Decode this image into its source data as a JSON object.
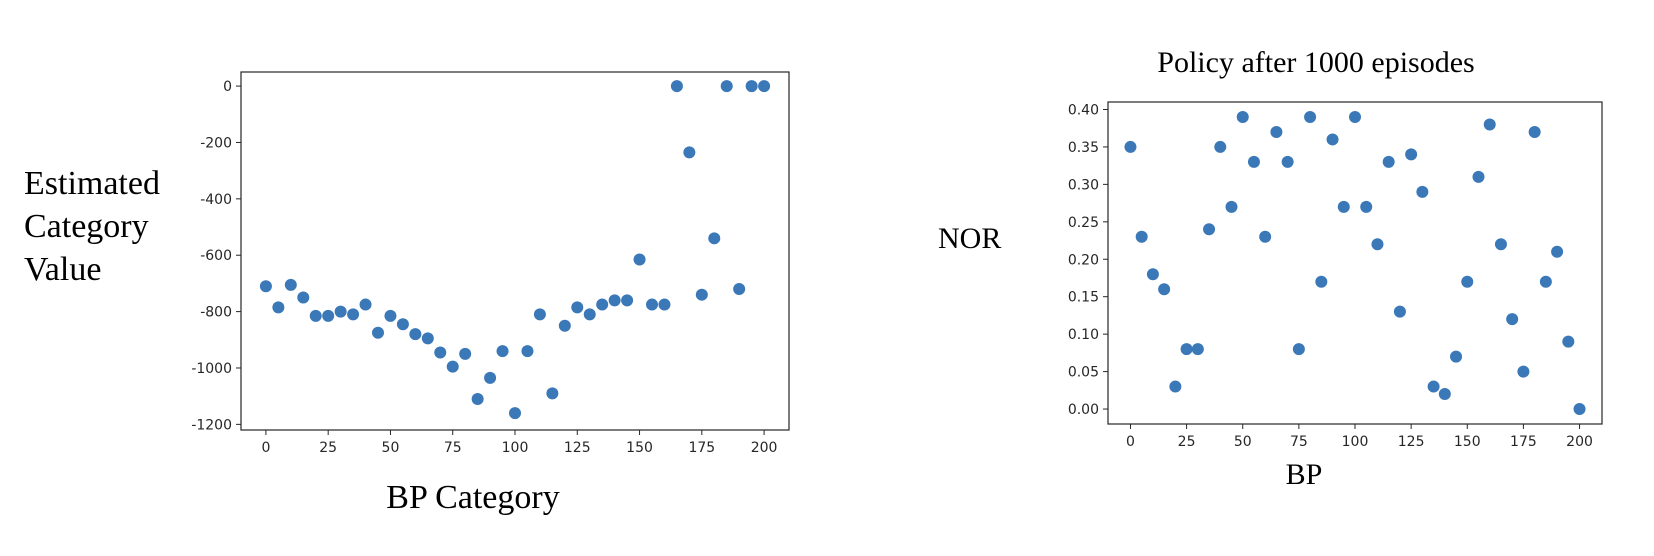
{
  "chart_data": [
    {
      "type": "scatter",
      "title": "",
      "xlabel": "BP Category",
      "ylabel_lines": [
        "Estimated",
        "Category",
        "Value"
      ],
      "xlim": [
        -10,
        210
      ],
      "ylim": [
        -1220,
        50
      ],
      "xticks": [
        0,
        25,
        50,
        75,
        100,
        125,
        150,
        175,
        200
      ],
      "yticks": [
        0,
        -200,
        -400,
        -600,
        -800,
        -1000,
        -1200
      ],
      "grid": false,
      "marker_color": "#3a78b8",
      "series": [
        {
          "x": [
            0,
            5,
            10,
            15,
            20,
            25,
            30,
            35,
            40,
            45,
            50,
            55,
            60,
            65,
            70,
            75,
            80,
            85,
            90,
            95,
            100,
            105,
            110,
            115,
            120,
            125,
            130,
            135,
            140,
            145,
            150,
            155,
            160,
            165,
            170,
            175,
            180,
            185,
            190,
            195,
            200
          ],
          "y": [
            -710,
            -785,
            -705,
            -750,
            -815,
            -815,
            -800,
            -810,
            -775,
            -875,
            -815,
            -845,
            -880,
            -895,
            -945,
            -995,
            -950,
            -1110,
            -1035,
            -940,
            -1160,
            -940,
            -810,
            -1090,
            -850,
            -785,
            -810,
            -775,
            -760,
            -760,
            -615,
            -775,
            -775,
            0,
            -235,
            -740,
            -540,
            0,
            -720,
            0,
            0
          ]
        }
      ]
    },
    {
      "type": "scatter",
      "title": "Policy after 1000 episodes",
      "xlabel": "BP",
      "ylabel": "NOR",
      "xlim": [
        -10,
        210
      ],
      "ylim": [
        -0.02,
        0.41
      ],
      "xticks": [
        0,
        25,
        50,
        75,
        100,
        125,
        150,
        175,
        200
      ],
      "yticks": [
        0.0,
        0.05,
        0.1,
        0.15,
        0.2,
        0.25,
        0.3,
        0.35,
        0.4
      ],
      "ytick_labels": [
        "0.00",
        "0.05",
        "0.10",
        "0.15",
        "0.20",
        "0.25",
        "0.30",
        "0.35",
        "0.40"
      ],
      "grid": false,
      "marker_color": "#3a78b8",
      "series": [
        {
          "x": [
            0,
            5,
            10,
            15,
            20,
            25,
            30,
            35,
            40,
            45,
            50,
            55,
            60,
            65,
            70,
            75,
            80,
            85,
            90,
            95,
            100,
            105,
            110,
            115,
            120,
            125,
            130,
            135,
            140,
            145,
            150,
            155,
            160,
            165,
            170,
            175,
            180,
            185,
            190,
            195,
            200
          ],
          "y": [
            0.35,
            0.23,
            0.18,
            0.16,
            0.03,
            0.08,
            0.08,
            0.24,
            0.35,
            0.27,
            0.39,
            0.33,
            0.23,
            0.37,
            0.33,
            0.08,
            0.39,
            0.17,
            0.36,
            0.27,
            0.39,
            0.27,
            0.22,
            0.33,
            0.13,
            0.34,
            0.29,
            0.03,
            0.02,
            0.07,
            0.17,
            0.31,
            0.38,
            0.22,
            0.12,
            0.05,
            0.37,
            0.17,
            0.21,
            0.09,
            0.0
          ]
        }
      ]
    }
  ]
}
